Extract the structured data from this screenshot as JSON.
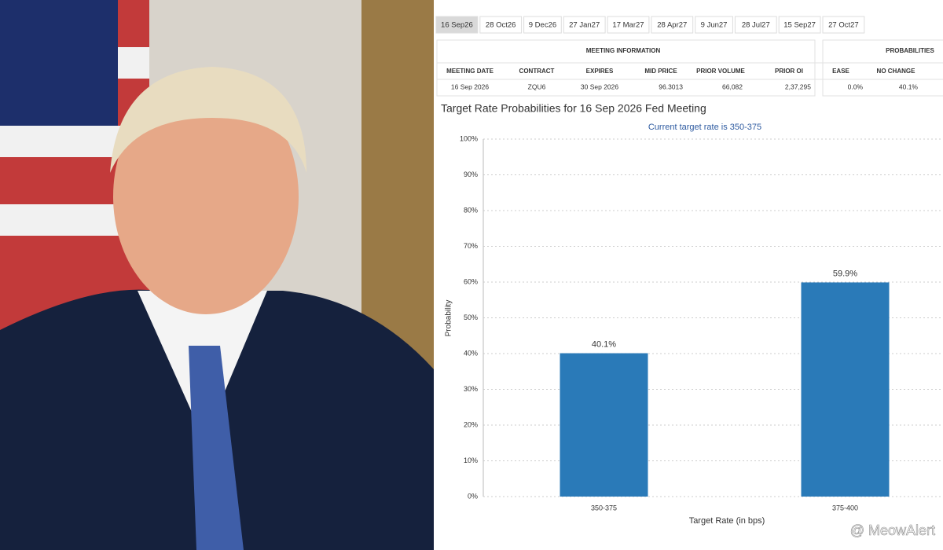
{
  "tabs": [
    "16 Sep26",
    "28 Oct26",
    "9 Dec26",
    "27 Jan27",
    "17 Mar27",
    "28 Apr27",
    "9 Jun27",
    "28 Jul27",
    "15 Sep27",
    "27 Oct27"
  ],
  "table": {
    "group_headers": [
      "MEETING INFORMATION",
      "PROBABILITIES"
    ],
    "columns": [
      "MEETING DATE",
      "CONTRACT",
      "EXPIRES",
      "MID PRICE",
      "PRIOR VOLUME",
      "PRIOR OI",
      "EASE",
      "NO CHANGE"
    ],
    "rows": [
      [
        "16 Sep 2026",
        "ZQU6",
        "30 Sep 2026",
        "96.3013",
        "66,082",
        "2,37,295",
        "0.0%",
        "40.1%"
      ]
    ]
  },
  "chart_data": {
    "type": "bar",
    "title": "Target Rate Probabilities for 16 Sep 2026 Fed Meeting",
    "subtitle": "Current target rate is 350-375",
    "x_label": "Target Rate (in bps)",
    "y_label": "Probability",
    "categories": [
      "350-375",
      "375-400"
    ],
    "values": [
      40.1,
      59.9
    ],
    "value_labels": [
      "40.1%",
      "59.9%"
    ],
    "color": "#2a7ab8",
    "ylim": [
      0,
      100
    ],
    "yticks": [
      {
        "value": 0,
        "label": "0%"
      },
      {
        "value": 10,
        "label": "10%"
      },
      {
        "value": 20,
        "label": "20%"
      },
      {
        "value": 30,
        "label": "30%"
      },
      {
        "value": 40,
        "label": "40%"
      },
      {
        "value": 50,
        "label": "50%"
      },
      {
        "value": 60,
        "label": "60%"
      },
      {
        "value": 70,
        "label": "70%"
      },
      {
        "value": 80,
        "label": "80%"
      },
      {
        "value": 90,
        "label": "90%"
      },
      {
        "value": 100,
        "label": "100%"
      }
    ],
    "grid": true
  },
  "watermark": "@ MeowAlert"
}
